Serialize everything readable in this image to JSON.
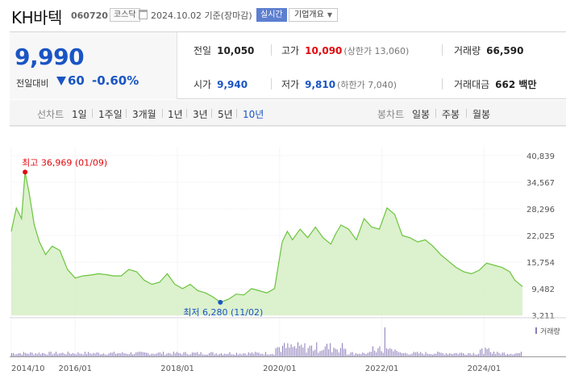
{
  "header": {
    "name": "KH바텍",
    "code": "060720",
    "market": "코스닥",
    "date": "2024.10.02 기준(장마감)",
    "realtime": "실시간",
    "corp_info": "기업개요"
  },
  "price": {
    "current": "9,990",
    "change_label": "전일대비",
    "change": "60",
    "change_pct": "-0.60%",
    "direction": "down"
  },
  "summary": {
    "prev_label": "전일",
    "prev": "10,050",
    "high_label": "고가",
    "high": "10,090",
    "upper_limit": "(상한가 13,060)",
    "volume_label": "거래량",
    "volume": "66,590",
    "open_label": "시가",
    "open": "9,940",
    "low_label": "저가",
    "low": "9,810",
    "lower_limit": "(하한가 7,040)",
    "amount_label": "거래대금",
    "amount": "662 백만"
  },
  "period_bar": {
    "line_label": "선차트",
    "line_periods": [
      "1일",
      "1주일",
      "3개월",
      "1년",
      "3년",
      "5년",
      "10년"
    ],
    "selected": "10년",
    "candle_label": "봉차트",
    "candle_periods": [
      "일봉",
      "주봉",
      "월봉"
    ]
  },
  "colors": {
    "up": "#e2080d",
    "down": "#1a55c4",
    "line": "#6ac43d",
    "fill": "#d8f0c8",
    "volume": "#8a7ab8"
  },
  "chart_data": {
    "type": "area",
    "y_ticks": [
      "40,839",
      "34,567",
      "28,296",
      "22,025",
      "15,754",
      "9,482",
      "3,211"
    ],
    "ylim": [
      3211,
      40839
    ],
    "x_ticks": [
      "2014/10",
      "2016/01",
      "2018/01",
      "2020/01",
      "2022/01",
      "2024/01"
    ],
    "x_tick_years": [
      2014.75,
      2016.0,
      2018.0,
      2020.0,
      2022.0,
      2024.0
    ],
    "xlim": [
      2014.75,
      2024.75
    ],
    "max_label": "최고 36,969 (01/09)",
    "min_label": "최저 6,280 (11/02)",
    "max_point": {
      "x": 2015.02,
      "y": 36969
    },
    "min_point": {
      "x": 2018.84,
      "y": 6280
    },
    "series": [
      {
        "x": [
          2014.75,
          2014.85,
          2014.95,
          2015.02,
          2015.1,
          2015.2,
          2015.3,
          2015.42,
          2015.55,
          2015.7,
          2015.85,
          2016.0,
          2016.15,
          2016.3,
          2016.45,
          2016.6,
          2016.75,
          2016.9,
          2017.05,
          2017.2,
          2017.35,
          2017.5,
          2017.65,
          2017.8,
          2017.95,
          2018.1,
          2018.25,
          2018.4,
          2018.55,
          2018.7,
          2018.84,
          2019.0,
          2019.15,
          2019.3,
          2019.45,
          2019.6,
          2019.75,
          2019.9,
          2020.05,
          2020.15,
          2020.25,
          2020.4,
          2020.55,
          2020.7,
          2020.85,
          2021.0,
          2021.1,
          2021.2,
          2021.35,
          2021.5,
          2021.65,
          2021.8,
          2021.95,
          2022.1,
          2022.25,
          2022.4,
          2022.55,
          2022.7,
          2022.85,
          2023.0,
          2023.15,
          2023.3,
          2023.45,
          2023.6,
          2023.75,
          2023.9,
          2024.05,
          2024.2,
          2024.35,
          2024.5,
          2024.6,
          2024.75
        ],
        "values": [
          23000,
          28500,
          26000,
          36969,
          32000,
          24500,
          20500,
          17500,
          19500,
          18500,
          14000,
          12000,
          12500,
          12700,
          13000,
          12800,
          12500,
          12500,
          14000,
          13500,
          11500,
          10500,
          11000,
          13000,
          10500,
          9500,
          10500,
          9000,
          8500,
          7500,
          6280,
          7000,
          8200,
          8000,
          9500,
          9000,
          8500,
          9500,
          20500,
          23000,
          21000,
          23500,
          21500,
          24000,
          21500,
          20000,
          22500,
          24500,
          23500,
          21000,
          26000,
          24000,
          23500,
          28500,
          27000,
          22000,
          21500,
          20500,
          21000,
          19500,
          17500,
          16000,
          14500,
          13500,
          13000,
          13800,
          15500,
          15000,
          14500,
          13500,
          11500,
          9990
        ]
      }
    ],
    "volume_label": "거래량"
  }
}
